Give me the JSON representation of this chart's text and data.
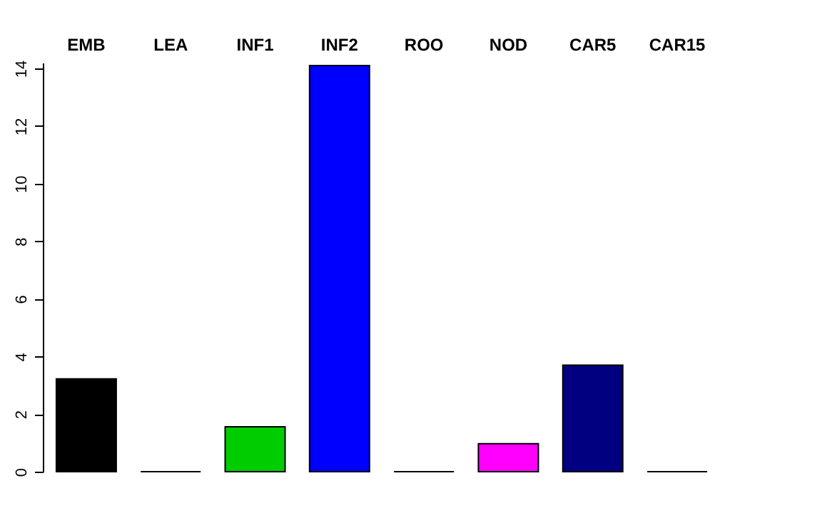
{
  "chart_data": {
    "type": "bar",
    "categories": [
      "EMB",
      "LEA",
      "INF1",
      "INF2",
      "ROO",
      "NOD",
      "CAR5",
      "CAR15"
    ],
    "values": [
      3.22,
      0,
      1.56,
      14.1,
      0,
      0.97,
      3.7,
      0
    ],
    "colors": [
      "#000000",
      "#000000",
      "#00cd00",
      "#0000ff",
      "#000000",
      "#ff00ff",
      "#000080",
      "#000000"
    ],
    "ylim": [
      0,
      14.2
    ],
    "yticks": [
      0,
      2,
      4,
      6,
      8,
      10,
      12,
      14
    ],
    "grid": false,
    "legend": false
  }
}
